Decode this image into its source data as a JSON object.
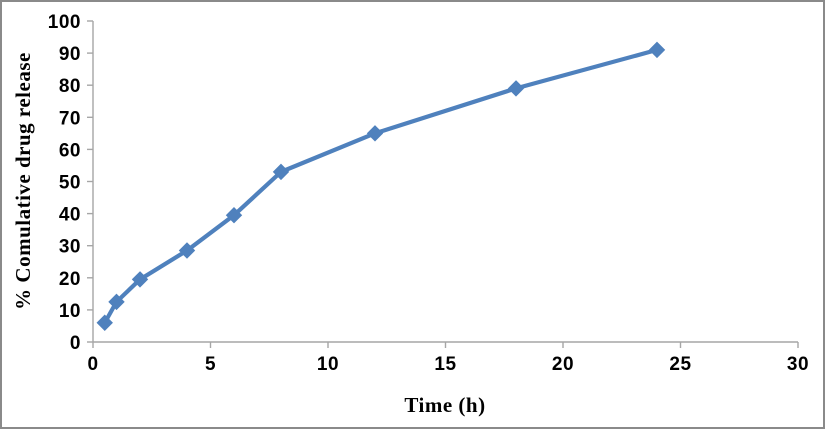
{
  "chart_data": {
    "type": "line",
    "title": "",
    "xlabel": "Time (h)",
    "ylabel": "% Comulative drug release",
    "x": [
      0.5,
      1,
      2,
      4,
      6,
      8,
      12,
      18,
      24
    ],
    "y": [
      6,
      12.5,
      19.5,
      28.5,
      39.5,
      53,
      65,
      79,
      91
    ],
    "series": [
      {
        "name": "% cumulative drug release",
        "x": [
          0.5,
          1,
          2,
          4,
          6,
          8,
          12,
          18,
          24
        ],
        "y": [
          6,
          12.5,
          19.5,
          28.5,
          39.5,
          53,
          65,
          79,
          91
        ]
      }
    ],
    "xlim": [
      0,
      30
    ],
    "ylim": [
      0,
      100
    ],
    "xticks": [
      0,
      5,
      10,
      15,
      20,
      25,
      30
    ],
    "yticks": [
      0,
      10,
      20,
      30,
      40,
      50,
      60,
      70,
      80,
      90,
      100
    ],
    "grid": false,
    "legend_position": "none",
    "marker": "diamond",
    "colors": {
      "series": "#4F81BD",
      "axis": "#A6A6A6",
      "text": "#000000",
      "figure_border": "#8A8A8A",
      "background": "#FFFFFF"
    }
  }
}
